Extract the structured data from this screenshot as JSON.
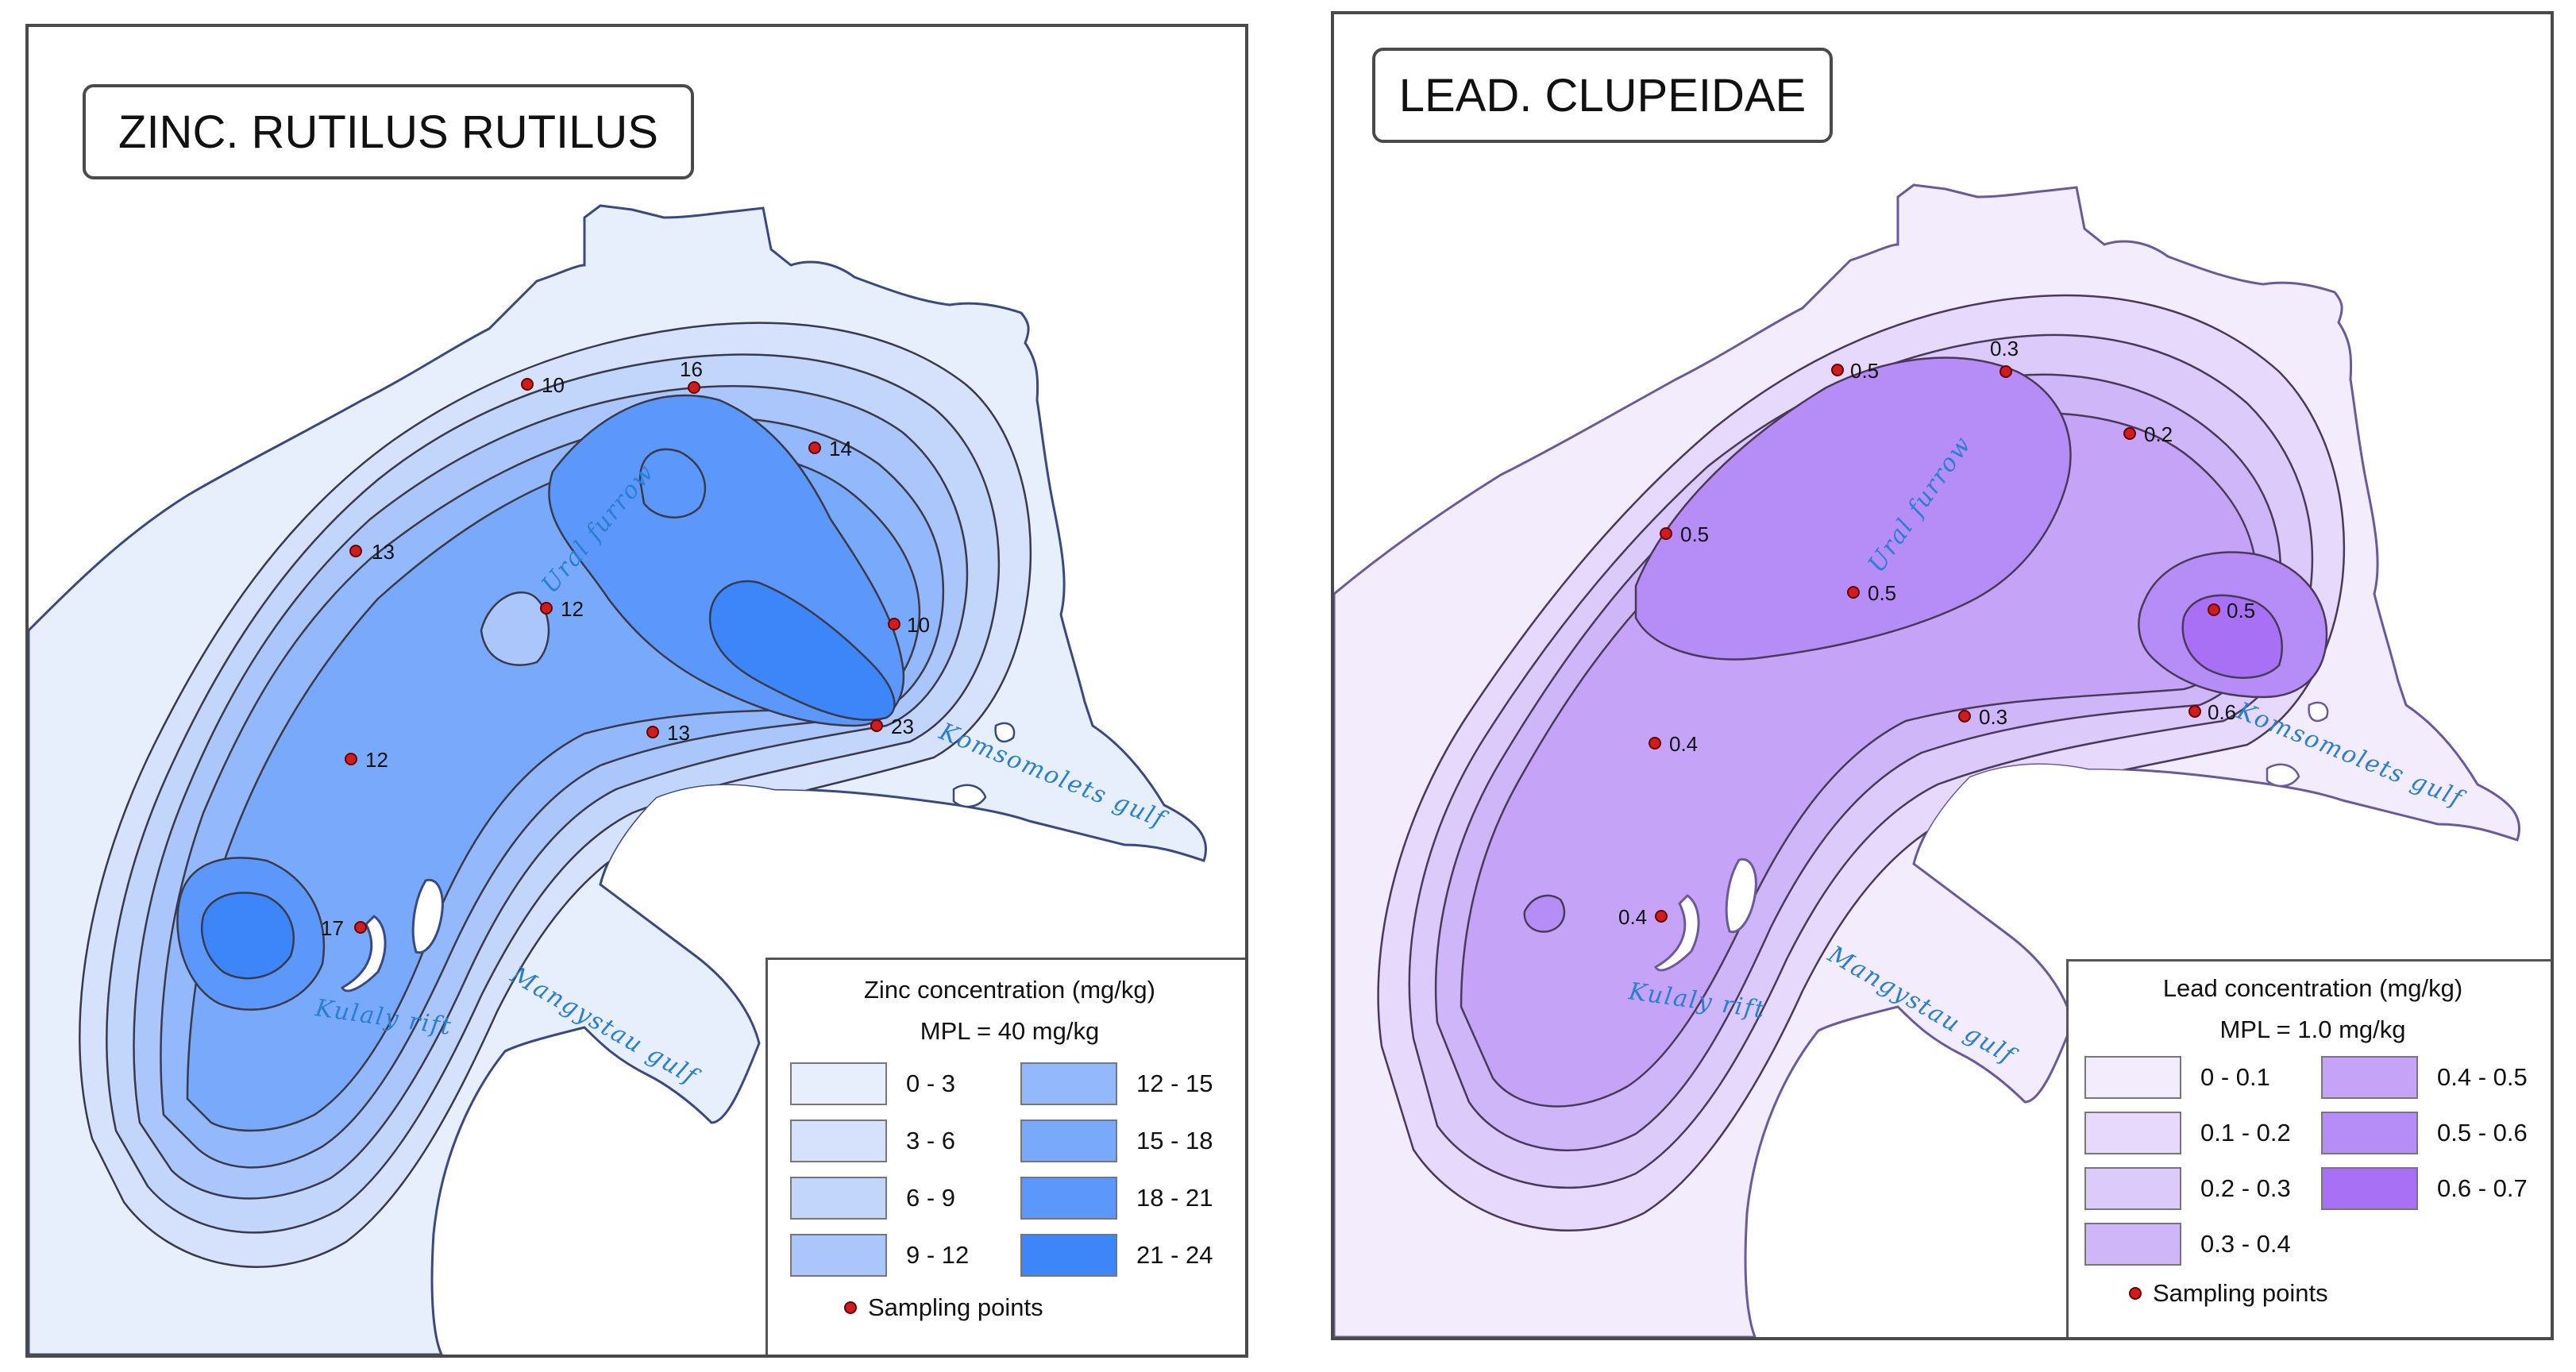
{
  "colors": {
    "zinc_classes": [
      "#e8effc",
      "#d6e2fb",
      "#c2d5fb",
      "#aac6fb",
      "#93b8fb",
      "#78a9fb",
      "#5c98fb",
      "#3d86fa"
    ],
    "lead_classes": [
      "#f3ecfd",
      "#e6d9fb",
      "#dccafb",
      "#cfb6f8",
      "#c5a4f8",
      "#b68cf7",
      "#a770f5"
    ],
    "sampling_point": "#cc1e1e",
    "geo_label": "#2a7fd0"
  },
  "zinc_map": {
    "title": "ZINC. RUTILUS RUTILUS",
    "legend": {
      "title": "Zinc concentration (mg/kg)",
      "mpl": "MPL = 40 mg/kg",
      "items": [
        "0 - 3",
        "3 - 6",
        "6 - 9",
        "9 - 12",
        "12 - 15",
        "15 - 18",
        "18 - 21",
        "21 - 24"
      ],
      "sampling_label": "Sampling points"
    },
    "places": {
      "ural": "Ural furrow",
      "komsomolets": "Komsomolets gulf",
      "kulaly": "Kulaly rift",
      "mangystau": "Mangystau gulf"
    },
    "points": [
      {
        "label": "10",
        "value": 10
      },
      {
        "label": "16",
        "value": 16
      },
      {
        "label": "14",
        "value": 14
      },
      {
        "label": "13",
        "value": 13
      },
      {
        "label": "12",
        "value": 12
      },
      {
        "label": "10",
        "value": 10
      },
      {
        "label": "13",
        "value": 13
      },
      {
        "label": "23",
        "value": 23
      },
      {
        "label": "12",
        "value": 12
      },
      {
        "label": "17",
        "value": 17
      }
    ]
  },
  "lead_map": {
    "title": "LEAD. CLUPEIDAE",
    "legend": {
      "title": "Lead concentration (mg/kg)",
      "mpl": "MPL = 1.0 mg/kg",
      "items": [
        "0 - 0.1",
        "0.1 - 0.2",
        "0.2 - 0.3",
        "0.3 - 0.4",
        "0.4 - 0.5",
        "0.5 - 0.6",
        "0.6 - 0.7"
      ],
      "sampling_label": "Sampling points"
    },
    "places": {
      "ural": "Ural furrow",
      "komsomolets": "Komsomolets gulf",
      "kulaly": "Kulaly rift",
      "mangystau": "Mangystau gulf"
    },
    "points": [
      {
        "label": "0.5",
        "value": 0.5
      },
      {
        "label": "0.3",
        "value": 0.3
      },
      {
        "label": "0.2",
        "value": 0.2
      },
      {
        "label": "0.5",
        "value": 0.5
      },
      {
        "label": "0.5",
        "value": 0.5
      },
      {
        "label": "0.5",
        "value": 0.5
      },
      {
        "label": "0.6",
        "value": 0.6
      },
      {
        "label": "0.3",
        "value": 0.3
      },
      {
        "label": "0.4",
        "value": 0.4
      },
      {
        "label": "0.4",
        "value": 0.4
      }
    ]
  }
}
